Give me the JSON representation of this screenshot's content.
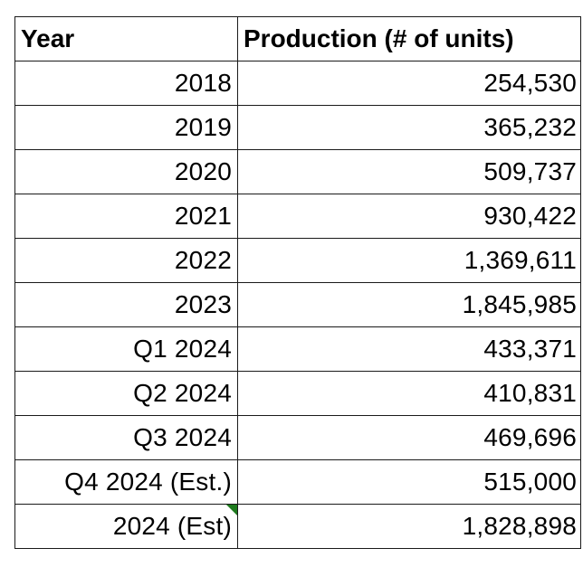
{
  "table": {
    "headers": [
      "Year",
      "Production (# of units)"
    ],
    "rows": [
      {
        "year": "2018",
        "production": "254,530"
      },
      {
        "year": "2019",
        "production": "365,232"
      },
      {
        "year": "2020",
        "production": "509,737"
      },
      {
        "year": "2021",
        "production": "930,422"
      },
      {
        "year": "2022",
        "production": "1,369,611"
      },
      {
        "year": "2023",
        "production": "1,845,985"
      },
      {
        "year": "Q1 2024",
        "production": "433,371"
      },
      {
        "year": "Q2 2024",
        "production": "410,831"
      },
      {
        "year": "Q3 2024",
        "production": "469,696"
      },
      {
        "year": "Q4 2024 (Est.)",
        "production": "515,000"
      },
      {
        "year": "2024 (Est)",
        "production": "1,828,898"
      }
    ],
    "note_indicator_color": "#1e7b1e"
  },
  "chart_data": {
    "type": "table",
    "columns": [
      "Year",
      "Production (# of units)"
    ],
    "rows": [
      [
        "2018",
        254530
      ],
      [
        "2019",
        365232
      ],
      [
        "2020",
        509737
      ],
      [
        "2021",
        930422
      ],
      [
        "2022",
        1369611
      ],
      [
        "2023",
        1845985
      ],
      [
        "Q1 2024",
        433371
      ],
      [
        "Q2 2024",
        410831
      ],
      [
        "Q3 2024",
        469696
      ],
      [
        "Q4 2024 (Est.)",
        515000
      ],
      [
        "2024 (Est)",
        1828898
      ]
    ]
  }
}
